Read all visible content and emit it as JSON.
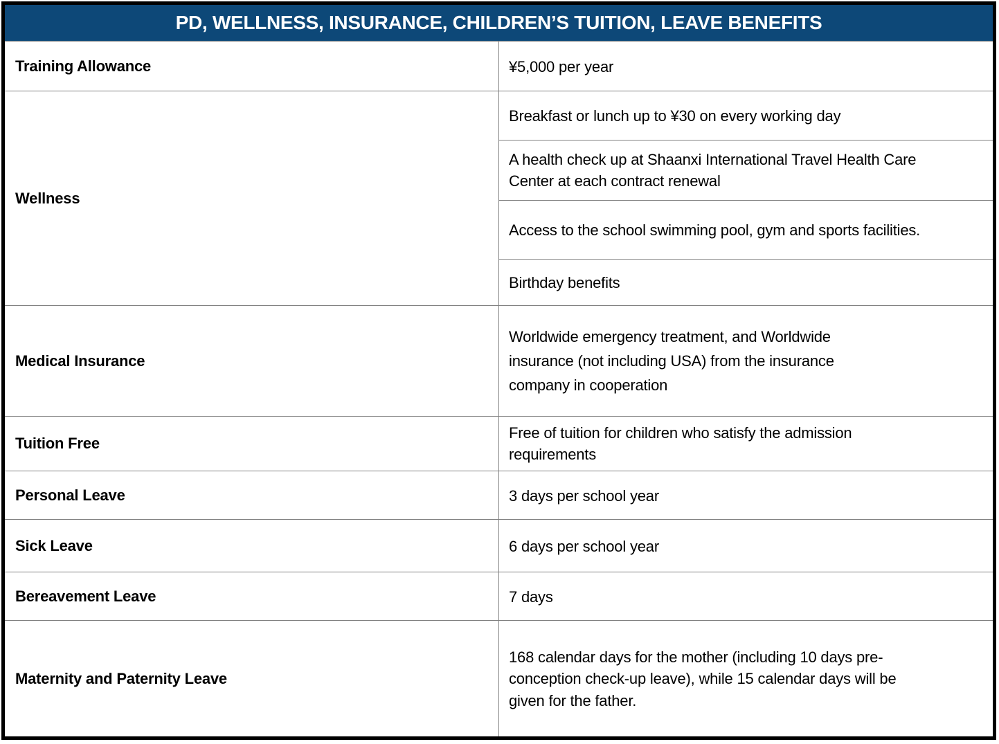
{
  "table": {
    "title": "PD, WELLNESS, INSURANCE, CHILDREN’S TUITION, LEAVE BENEFITS",
    "colors": {
      "header_background": "#0d4878",
      "header_text": "#ffffff",
      "outer_border": "#000000",
      "inner_border": "#808080",
      "body_text": "#000000"
    },
    "rows": [
      {
        "label": "Training Allowance",
        "values": [
          "¥5,000 per year"
        ]
      },
      {
        "label": "Wellness",
        "values": [
          "Breakfast or lunch up to ¥30 on every working day",
          "A health check up at Shaanxi International Travel Health Care Center at each contract renewal",
          "Access to the school swimming pool, gym and sports facilities.",
          "Birthday benefits"
        ]
      },
      {
        "label": "Medical Insurance",
        "values": [
          "Worldwide emergency treatment, and Worldwide insurance (not including USA) from the insurance company in cooperation"
        ]
      },
      {
        "label": "Tuition Free",
        "values": [
          "Free of tuition for children who satisfy the admission requirements"
        ]
      },
      {
        "label": "Personal Leave",
        "values": [
          "3 days per school year"
        ]
      },
      {
        "label": "Sick Leave",
        "values": [
          "6 days per school year"
        ]
      },
      {
        "label": "Bereavement Leave",
        "values": [
          "7 days"
        ]
      },
      {
        "label": "Maternity and Paternity Leave",
        "values": [
          "168 calendar days for the mother (including 10 days pre-conception check-up leave), while 15 calendar days will be given for the father."
        ]
      }
    ]
  }
}
